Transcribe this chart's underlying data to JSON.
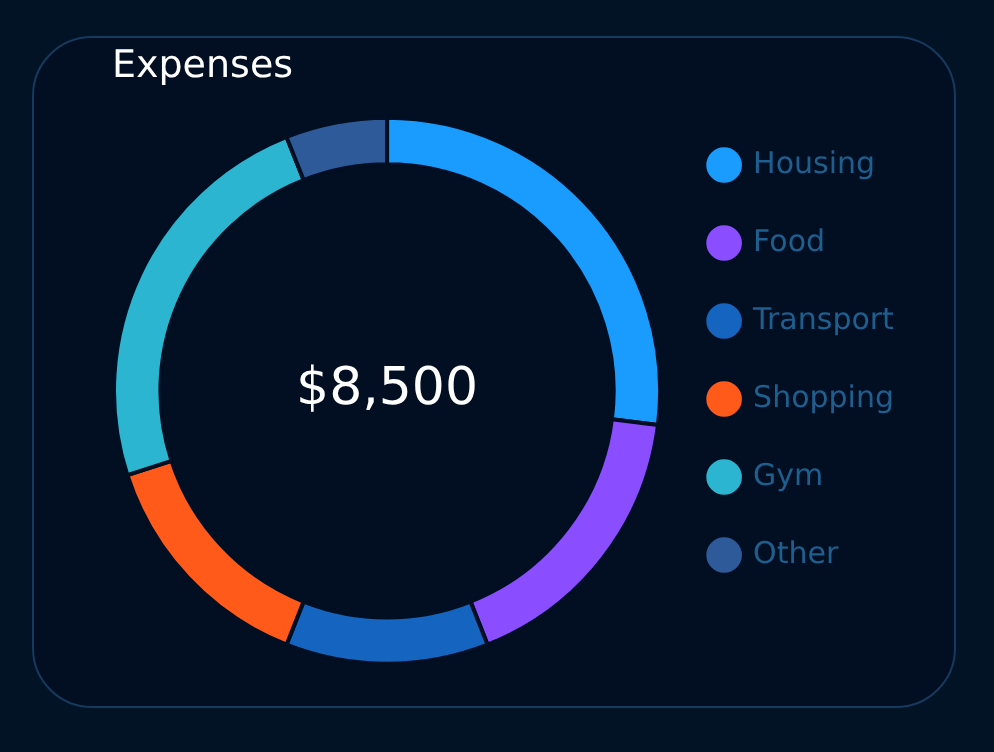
{
  "chart_data": {
    "type": "donut",
    "title": "Expenses",
    "categories": [
      "Housing",
      "Food",
      "Transport",
      "Shopping",
      "Gym",
      "Other"
    ],
    "values": [
      27,
      17,
      12,
      14,
      24,
      6
    ],
    "colors": [
      "#1a9cff",
      "#8a4dff",
      "#1565c0",
      "#ff5a1a",
      "#2bb5d0",
      "#2e5a9a"
    ],
    "annotations": [
      "$8,500"
    ],
    "legend": "right"
  }
}
